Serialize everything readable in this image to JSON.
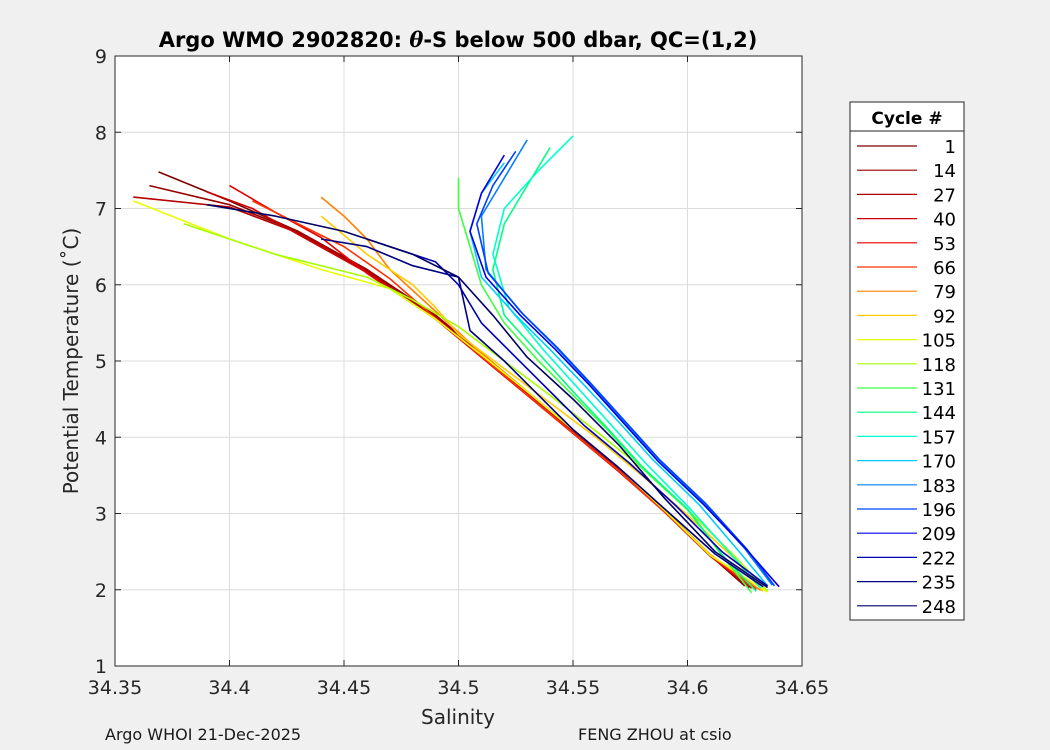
{
  "chart_data": {
    "type": "line",
    "title": "Argo WMO 2902820: θ-S below 500 dbar,  QC=(1,2)",
    "title_parts": {
      "pre": "Argo WMO 2902820: ",
      "theta": "θ",
      "post": "-S below 500 dbar,  QC=(1,2)"
    },
    "xlabel": "Salinity",
    "ylabel": "Potential Temperature (˚C)",
    "xlim": [
      34.35,
      34.65
    ],
    "ylim": [
      1,
      9
    ],
    "x_ticks": [
      34.35,
      34.4,
      34.45,
      34.5,
      34.55,
      34.6,
      34.65
    ],
    "x_tick_labels": [
      "34.35",
      "34.4",
      "34.45",
      "34.5",
      "34.55",
      "34.6",
      "34.65"
    ],
    "y_ticks": [
      1,
      2,
      3,
      4,
      5,
      6,
      7,
      8,
      9
    ],
    "y_tick_labels": [
      "1",
      "2",
      "3",
      "4",
      "5",
      "6",
      "7",
      "8",
      "9"
    ],
    "grid": true,
    "legend_title": "Cycle #",
    "legend_position": "right-outside",
    "colormap": "jet",
    "series": [
      {
        "name": "1",
        "color": "#800000",
        "x": [
          34.369,
          34.4,
          34.43,
          34.46,
          34.49,
          34.51,
          34.53,
          34.55,
          34.57,
          34.59,
          34.61,
          34.625
        ],
        "y": [
          7.48,
          7.1,
          6.7,
          6.2,
          5.6,
          5.1,
          4.6,
          4.1,
          3.6,
          3.05,
          2.45,
          2.05
        ]
      },
      {
        "name": "14",
        "color": "#990000",
        "x": [
          34.365,
          34.4,
          34.43,
          34.46,
          34.49,
          34.51,
          34.53,
          34.55,
          34.57,
          34.59,
          34.61,
          34.625
        ],
        "y": [
          7.3,
          7.05,
          6.7,
          6.2,
          5.6,
          5.1,
          4.6,
          4.1,
          3.6,
          3.05,
          2.45,
          2.05
        ]
      },
      {
        "name": "27",
        "color": "#b30000",
        "x": [
          34.358,
          34.4,
          34.43,
          34.46,
          34.49,
          34.51,
          34.53,
          34.55,
          34.57,
          34.59,
          34.61,
          34.627
        ],
        "y": [
          7.15,
          7.02,
          6.68,
          6.18,
          5.58,
          5.08,
          4.58,
          4.08,
          3.58,
          3.03,
          2.45,
          2.03
        ]
      },
      {
        "name": "40",
        "color": "#cc0000",
        "x": [
          34.39,
          34.41,
          34.43,
          34.46,
          34.49,
          34.51,
          34.53,
          34.55,
          34.57,
          34.59,
          34.61,
          34.628
        ],
        "y": [
          7.22,
          7.0,
          6.66,
          6.16,
          5.56,
          5.06,
          4.56,
          4.06,
          3.56,
          3.02,
          2.44,
          2.02
        ]
      },
      {
        "name": "53",
        "color": "#e60000",
        "x": [
          34.4,
          34.42,
          34.44,
          34.46,
          34.49,
          34.51,
          34.53,
          34.55,
          34.57,
          34.59,
          34.61,
          34.63
        ],
        "y": [
          7.3,
          6.95,
          6.62,
          6.15,
          5.55,
          5.05,
          4.55,
          4.05,
          3.55,
          3.02,
          2.44,
          2.01
        ]
      },
      {
        "name": "66",
        "color": "#ff3300",
        "x": [
          34.41,
          34.43,
          34.45,
          34.47,
          34.49,
          34.51,
          34.53,
          34.55,
          34.57,
          34.59,
          34.61,
          34.63
        ],
        "y": [
          7.1,
          6.8,
          6.5,
          6.08,
          5.56,
          5.06,
          4.56,
          4.06,
          3.56,
          3.02,
          2.45,
          2.0
        ]
      },
      {
        "name": "79",
        "color": "#ff8000",
        "x": [
          34.44,
          34.45,
          34.46,
          34.47,
          34.49,
          34.51,
          34.53,
          34.55,
          34.57,
          34.59,
          34.61,
          34.632
        ],
        "y": [
          7.15,
          6.9,
          6.6,
          6.2,
          5.65,
          5.1,
          4.6,
          4.1,
          3.6,
          3.05,
          2.46,
          1.99
        ]
      },
      {
        "name": "92",
        "color": "#ffcc00",
        "x": [
          34.44,
          34.46,
          34.48,
          34.49,
          34.5,
          34.52,
          34.54,
          34.56,
          34.58,
          34.6,
          34.62,
          34.633
        ],
        "y": [
          6.9,
          6.4,
          6.0,
          5.7,
          5.35,
          4.9,
          4.45,
          4.0,
          3.5,
          2.98,
          2.42,
          1.98
        ]
      },
      {
        "name": "105",
        "color": "#e6ff00",
        "x": [
          34.358,
          34.4,
          34.44,
          34.47,
          34.49,
          34.51,
          34.53,
          34.55,
          34.57,
          34.59,
          34.61,
          34.635
        ],
        "y": [
          7.1,
          6.6,
          6.2,
          5.95,
          5.55,
          5.08,
          4.6,
          4.1,
          3.6,
          3.04,
          2.45,
          1.97
        ]
      },
      {
        "name": "118",
        "color": "#a6ff00",
        "x": [
          34.38,
          34.42,
          34.46,
          34.48,
          34.5,
          34.52,
          34.54,
          34.56,
          34.58,
          34.6,
          34.62,
          34.635
        ],
        "y": [
          6.8,
          6.4,
          6.1,
          5.8,
          5.45,
          5.0,
          4.55,
          4.08,
          3.6,
          3.05,
          2.46,
          1.98
        ]
      },
      {
        "name": "131",
        "color": "#40ff40",
        "x": [
          34.5,
          34.5,
          34.505,
          34.51,
          34.52,
          34.535,
          34.55,
          34.565,
          34.58,
          34.6,
          34.615,
          34.628
        ],
        "y": [
          7.4,
          7.0,
          6.5,
          6.0,
          5.5,
          5.0,
          4.55,
          4.1,
          3.6,
          3.05,
          2.45,
          1.96
        ]
      },
      {
        "name": "144",
        "color": "#00ff80",
        "x": [
          34.54,
          34.53,
          34.52,
          34.515,
          34.52,
          34.535,
          34.55,
          34.565,
          34.58,
          34.6,
          34.615,
          34.63
        ],
        "y": [
          7.8,
          7.3,
          6.8,
          6.2,
          5.6,
          5.1,
          4.6,
          4.12,
          3.62,
          3.06,
          2.46,
          1.98
        ]
      },
      {
        "name": "157",
        "color": "#00ffcc",
        "x": [
          34.55,
          34.535,
          34.52,
          34.515,
          34.522,
          34.537,
          34.552,
          34.567,
          34.582,
          34.6,
          34.618,
          34.632
        ],
        "y": [
          7.95,
          7.5,
          7.0,
          6.4,
          5.7,
          5.15,
          4.65,
          4.15,
          3.65,
          3.1,
          2.5,
          2.02
        ]
      },
      {
        "name": "170",
        "color": "#00ccff",
        "x": [
          34.52,
          34.51,
          34.505,
          34.51,
          34.525,
          34.54,
          34.555,
          34.57,
          34.585,
          34.605,
          34.622,
          34.635
        ],
        "y": [
          7.6,
          7.2,
          6.7,
          6.1,
          5.6,
          5.15,
          4.68,
          4.2,
          3.7,
          3.12,
          2.52,
          2.05
        ]
      },
      {
        "name": "183",
        "color": "#0080ff",
        "x": [
          34.53,
          34.52,
          34.51,
          34.512,
          34.527,
          34.542,
          34.557,
          34.572,
          34.587,
          34.607,
          34.625,
          34.637
        ],
        "y": [
          7.9,
          7.4,
          6.9,
          6.2,
          5.65,
          5.2,
          4.72,
          4.22,
          3.72,
          3.14,
          2.54,
          2.06
        ]
      },
      {
        "name": "196",
        "color": "#0040ff",
        "x": [
          34.525,
          34.515,
          34.508,
          34.513,
          34.528,
          34.543,
          34.558,
          34.573,
          34.588,
          34.608,
          34.626,
          34.638
        ],
        "y": [
          7.75,
          7.3,
          6.8,
          6.15,
          5.62,
          5.18,
          4.7,
          4.2,
          3.7,
          3.13,
          2.53,
          2.05
        ]
      },
      {
        "name": "209",
        "color": "#0000e6",
        "x": [
          34.52,
          34.51,
          34.505,
          34.512,
          34.527,
          34.542,
          34.557,
          34.572,
          34.587,
          34.607,
          34.626,
          34.64
        ],
        "y": [
          7.7,
          7.2,
          6.7,
          6.1,
          5.6,
          5.16,
          4.69,
          4.19,
          3.69,
          3.12,
          2.52,
          2.04
        ]
      },
      {
        "name": "222",
        "color": "#0000b3",
        "x": [
          34.46,
          34.48,
          34.49,
          34.5,
          34.51,
          34.525,
          34.54,
          34.555,
          34.575,
          34.595,
          34.615,
          34.635
        ],
        "y": [
          6.6,
          6.4,
          6.3,
          6.0,
          5.5,
          5.05,
          4.6,
          4.15,
          3.65,
          3.1,
          2.5,
          2.05
        ]
      },
      {
        "name": "235",
        "color": "#000080",
        "x": [
          34.44,
          34.46,
          34.48,
          34.5,
          34.505,
          34.52,
          34.535,
          34.55,
          34.57,
          34.59,
          34.612,
          34.633
        ],
        "y": [
          6.6,
          6.5,
          6.25,
          6.1,
          5.4,
          5.0,
          4.55,
          4.1,
          3.6,
          3.06,
          2.47,
          2.04
        ]
      },
      {
        "name": "248",
        "color": "#000066",
        "x": [
          34.39,
          34.42,
          34.45,
          34.48,
          34.5,
          34.515,
          34.53,
          34.55,
          34.57,
          34.59,
          34.612,
          34.635
        ],
        "y": [
          7.05,
          6.9,
          6.7,
          6.4,
          6.1,
          5.6,
          5.05,
          4.5,
          3.9,
          3.2,
          2.5,
          2.03
        ]
      }
    ]
  },
  "footer": {
    "left": "Argo WHOI 21-Dec-2025",
    "right": "FENG ZHOU at csio"
  }
}
